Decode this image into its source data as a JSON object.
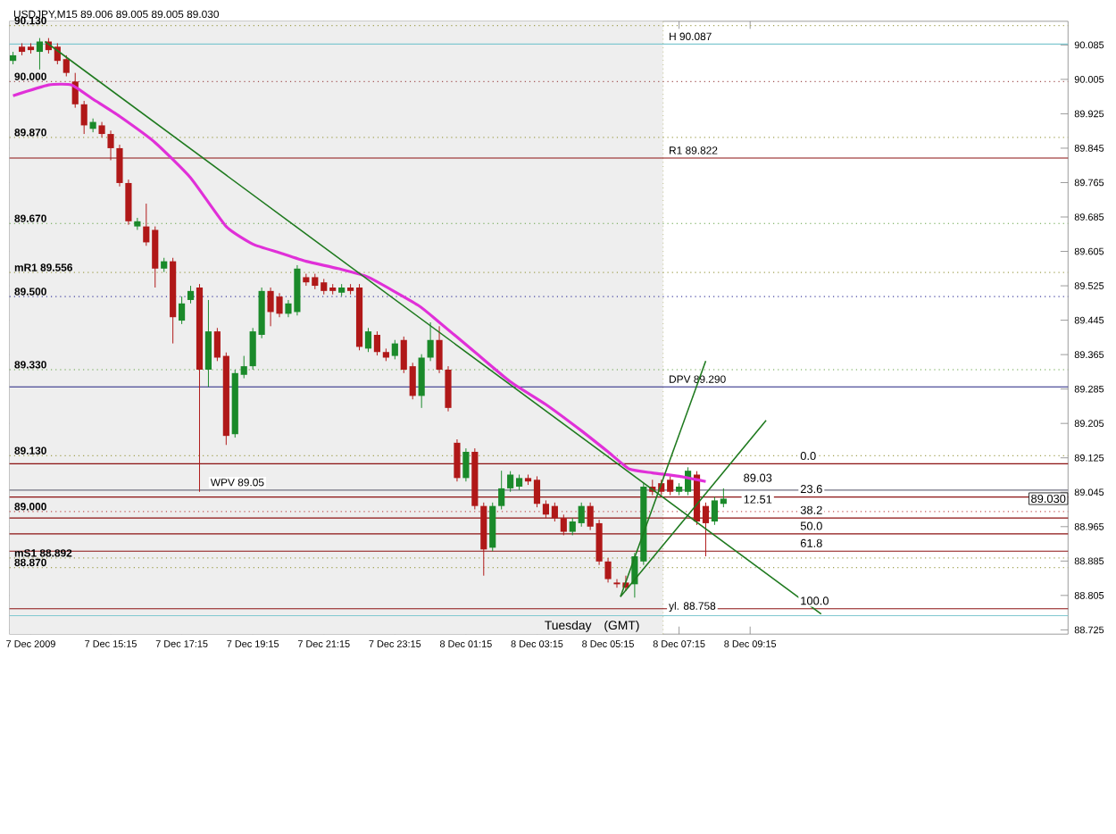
{
  "chart_data": {
    "type": "candlestick",
    "title": "USDJPY,M15 89.006 89.005 89.005 89.030",
    "xlim": [
      "2009-12-07T12:24",
      "2009-12-08T18:12"
    ],
    "ylim": [
      88.715,
      90.14
    ],
    "xticks": [
      {
        "value": "2009-12-07T13:00",
        "label": "7 Dec 2009"
      },
      {
        "value": "2009-12-07T15:15",
        "label": "7 Dec 15:15"
      },
      {
        "value": "2009-12-07T17:15",
        "label": "7 Dec 17:15"
      },
      {
        "value": "2009-12-07T19:15",
        "label": "7 Dec 19:15"
      },
      {
        "value": "2009-12-07T21:15",
        "label": "7 Dec 21:15"
      },
      {
        "value": "2009-12-07T23:15",
        "label": "7 Dec 23:15"
      },
      {
        "value": "2009-12-08T01:15",
        "label": "8 Dec 01:15"
      },
      {
        "value": "2009-12-08T03:15",
        "label": "8 Dec 03:15"
      },
      {
        "value": "2009-12-08T05:15",
        "label": "8 Dec 05:15"
      },
      {
        "value": "2009-12-08T07:15",
        "label": "8 Dec 07:15"
      },
      {
        "value": "2009-12-08T09:15",
        "label": "8 Dec 09:15"
      }
    ],
    "yticks": [
      {
        "value": 90.085,
        "label": "90.085"
      },
      {
        "value": 90.005,
        "label": "90.005"
      },
      {
        "value": 89.925,
        "label": "89.925"
      },
      {
        "value": 89.845,
        "label": "89.845"
      },
      {
        "value": 89.765,
        "label": "89.765"
      },
      {
        "value": 89.685,
        "label": "89.685"
      },
      {
        "value": 89.605,
        "label": "89.605"
      },
      {
        "value": 89.525,
        "label": "89.525"
      },
      {
        "value": 89.445,
        "label": "89.445"
      },
      {
        "value": 89.365,
        "label": "89.365"
      },
      {
        "value": 89.285,
        "label": "89.285"
      },
      {
        "value": 89.205,
        "label": "89.205"
      },
      {
        "value": 89.125,
        "label": "89.125"
      },
      {
        "value": 89.045,
        "label": "89.045"
      },
      {
        "value": 88.965,
        "label": "88.965"
      },
      {
        "value": 88.885,
        "label": "88.885"
      },
      {
        "value": 88.805,
        "label": "88.805"
      },
      {
        "value": 88.725,
        "label": "88.725"
      }
    ],
    "series": [
      {
        "x": [
          "2009-12-07T12:30",
          "2009-12-07T12:45",
          "2009-12-07T13:00",
          "2009-12-07T13:15",
          "2009-12-07T13:30",
          "2009-12-07T13:45",
          "2009-12-07T14:00",
          "2009-12-07T14:15",
          "2009-12-07T14:30",
          "2009-12-07T14:45",
          "2009-12-07T15:00",
          "2009-12-07T15:15",
          "2009-12-07T15:30",
          "2009-12-07T15:45",
          "2009-12-07T16:00",
          "2009-12-07T16:15",
          "2009-12-07T16:30",
          "2009-12-07T16:45",
          "2009-12-07T17:00",
          "2009-12-07T17:15",
          "2009-12-07T17:30",
          "2009-12-07T17:45",
          "2009-12-07T18:00",
          "2009-12-07T18:15",
          "2009-12-07T18:30",
          "2009-12-07T18:45",
          "2009-12-07T19:00",
          "2009-12-07T19:15",
          "2009-12-07T19:30",
          "2009-12-07T19:45",
          "2009-12-07T20:00",
          "2009-12-07T20:15",
          "2009-12-07T20:30",
          "2009-12-07T20:45",
          "2009-12-07T21:00",
          "2009-12-07T21:15",
          "2009-12-07T21:30",
          "2009-12-07T21:45",
          "2009-12-07T22:00",
          "2009-12-07T22:15",
          "2009-12-07T22:30",
          "2009-12-07T22:45",
          "2009-12-07T23:00",
          "2009-12-07T23:15",
          "2009-12-07T23:30",
          "2009-12-07T23:45",
          "2009-12-08T00:00",
          "2009-12-08T00:15",
          "2009-12-08T00:30",
          "2009-12-08T00:45",
          "2009-12-08T01:00",
          "2009-12-08T01:15",
          "2009-12-08T01:30",
          "2009-12-08T01:45",
          "2009-12-08T02:00",
          "2009-12-08T02:15",
          "2009-12-08T02:30",
          "2009-12-08T02:45",
          "2009-12-08T03:00",
          "2009-12-08T03:15",
          "2009-12-08T03:30",
          "2009-12-08T03:45",
          "2009-12-08T04:00",
          "2009-12-08T04:15",
          "2009-12-08T04:30",
          "2009-12-08T04:45",
          "2009-12-08T05:00",
          "2009-12-08T05:15",
          "2009-12-08T05:30",
          "2009-12-08T05:45",
          "2009-12-08T06:00",
          "2009-12-08T06:15",
          "2009-12-08T06:30",
          "2009-12-08T06:45",
          "2009-12-08T07:00",
          "2009-12-08T07:15",
          "2009-12-08T07:30",
          "2009-12-08T07:45",
          "2009-12-08T08:00",
          "2009-12-08T08:15",
          "2009-12-08T08:30"
        ],
        "ohlc": [
          [
            90.048,
            90.069,
            90.04,
            90.061
          ],
          [
            90.081,
            90.089,
            90.061,
            90.069
          ],
          [
            90.081,
            90.089,
            90.065,
            90.073
          ],
          [
            90.069,
            90.101,
            90.028,
            90.093
          ],
          [
            90.093,
            90.101,
            90.065,
            90.073
          ],
          [
            90.081,
            90.089,
            90.04,
            90.048
          ],
          [
            90.052,
            90.061,
            90.012,
            90.02
          ],
          [
            90.0,
            90.02,
            89.939,
            89.947
          ],
          [
            89.947,
            89.955,
            89.878,
            89.898
          ],
          [
            89.89,
            89.914,
            89.882,
            89.906
          ],
          [
            89.898,
            89.906,
            89.87,
            89.878
          ],
          [
            89.878,
            89.886,
            89.817,
            89.845
          ],
          [
            89.845,
            89.853,
            89.756,
            89.764
          ],
          [
            89.764,
            89.772,
            89.667,
            89.675
          ],
          [
            89.663,
            89.683,
            89.655,
            89.675
          ],
          [
            89.663,
            89.716,
            89.618,
            89.626
          ],
          [
            89.655,
            89.663,
            89.521,
            89.565
          ],
          [
            89.565,
            89.59,
            89.557,
            89.582
          ],
          [
            89.582,
            89.59,
            89.391,
            89.452
          ],
          [
            89.444,
            89.5,
            89.436,
            89.484
          ],
          [
            89.492,
            89.525,
            89.484,
            89.513
          ],
          [
            89.521,
            89.529,
            89.046,
            89.33
          ],
          [
            89.33,
            89.492,
            89.29,
            89.419
          ],
          [
            89.419,
            89.427,
            89.35,
            89.358
          ],
          [
            89.362,
            89.37,
            89.155,
            89.176
          ],
          [
            89.18,
            89.33,
            89.172,
            89.322
          ],
          [
            89.318,
            89.362,
            89.31,
            89.338
          ],
          [
            89.338,
            89.427,
            89.33,
            89.419
          ],
          [
            89.411,
            89.521,
            89.403,
            89.513
          ],
          [
            89.513,
            89.521,
            89.431,
            89.464
          ],
          [
            89.5,
            89.508,
            89.452,
            89.46
          ],
          [
            89.46,
            89.492,
            89.452,
            89.484
          ],
          [
            89.464,
            89.573,
            89.456,
            89.565
          ],
          [
            89.545,
            89.553,
            89.525,
            89.533
          ],
          [
            89.545,
            89.553,
            89.517,
            89.525
          ],
          [
            89.533,
            89.541,
            89.505,
            89.513
          ],
          [
            89.521,
            89.529,
            89.505,
            89.513
          ],
          [
            89.509,
            89.529,
            89.501,
            89.521
          ],
          [
            89.521,
            89.529,
            89.505,
            89.513
          ],
          [
            89.521,
            89.529,
            89.375,
            89.383
          ],
          [
            89.379,
            89.427,
            89.371,
            89.419
          ],
          [
            89.411,
            89.419,
            89.363,
            89.371
          ],
          [
            89.371,
            89.379,
            89.35,
            89.358
          ],
          [
            89.362,
            89.399,
            89.354,
            89.391
          ],
          [
            89.399,
            89.407,
            89.322,
            89.33
          ],
          [
            89.338,
            89.346,
            89.261,
            89.269
          ],
          [
            89.269,
            89.366,
            89.241,
            89.358
          ],
          [
            89.358,
            89.44,
            89.35,
            89.399
          ],
          [
            89.399,
            89.431,
            89.322,
            89.33
          ],
          [
            89.33,
            89.338,
            89.233,
            89.241
          ],
          [
            89.16,
            89.168,
            89.07,
            89.078
          ],
          [
            89.078,
            89.147,
            89.07,
            89.139
          ],
          [
            89.139,
            89.147,
            89.005,
            89.013
          ],
          [
            89.013,
            89.021,
            88.851,
            88.912
          ],
          [
            88.916,
            89.021,
            88.908,
            89.013
          ],
          [
            89.013,
            89.095,
            89.005,
            89.054
          ],
          [
            89.054,
            89.094,
            89.046,
            89.086
          ],
          [
            89.058,
            89.086,
            89.05,
            89.078
          ],
          [
            89.078,
            89.086,
            89.062,
            89.07
          ],
          [
            89.074,
            89.082,
            89.01,
            89.018
          ],
          [
            89.018,
            89.026,
            88.985,
            88.993
          ],
          [
            89.013,
            89.021,
            88.977,
            88.985
          ],
          [
            88.985,
            88.993,
            88.945,
            88.953
          ],
          [
            88.953,
            88.985,
            88.945,
            88.977
          ],
          [
            88.973,
            89.021,
            88.965,
            89.013
          ],
          [
            89.013,
            89.021,
            88.957,
            88.965
          ],
          [
            88.973,
            88.981,
            88.876,
            88.884
          ],
          [
            88.884,
            88.892,
            88.835,
            88.843
          ],
          [
            88.835,
            88.843,
            88.823,
            88.831
          ],
          [
            88.835,
            88.851,
            88.815,
            88.823
          ],
          [
            88.831,
            88.904,
            88.8,
            88.896
          ],
          [
            88.884,
            89.066,
            88.876,
            89.058
          ],
          [
            89.058,
            89.074,
            89.038,
            89.046
          ],
          [
            89.066,
            89.074,
            89.038,
            89.046
          ],
          [
            89.074,
            89.082,
            89.038,
            89.046
          ],
          [
            89.046,
            89.066,
            89.038,
            89.058
          ],
          [
            89.046,
            89.103,
            89.038,
            89.095
          ],
          [
            89.086,
            89.094,
            88.969,
            88.977
          ],
          [
            89.013,
            89.021,
            88.896,
            88.973
          ],
          [
            88.977,
            89.034,
            88.969,
            89.026
          ],
          [
            89.018,
            89.054,
            89.01,
            89.03
          ]
        ],
        "colors": [
          "#1a8a2a",
          "#b01818",
          "#b01818",
          "#1a8a2a",
          "#b01818",
          "#b01818",
          "#b01818",
          "#b01818",
          "#b01818",
          "#1a8a2a",
          "#b01818",
          "#b01818",
          "#b01818",
          "#b01818",
          "#1a8a2a",
          "#b01818",
          "#b01818",
          "#1a8a2a",
          "#b01818",
          "#1a8a2a",
          "#1a8a2a",
          "#b01818",
          "#1a8a2a",
          "#b01818",
          "#b01818",
          "#1a8a2a",
          "#1a8a2a",
          "#1a8a2a",
          "#1a8a2a",
          "#b01818",
          "#b01818",
          "#1a8a2a",
          "#1a8a2a",
          "#b01818",
          "#b01818",
          "#b01818",
          "#b01818",
          "#1a8a2a",
          "#b01818",
          "#b01818",
          "#1a8a2a",
          "#b01818",
          "#b01818",
          "#1a8a2a",
          "#b01818",
          "#b01818",
          "#1a8a2a",
          "#1a8a2a",
          "#b01818",
          "#b01818",
          "#b01818",
          "#1a8a2a",
          "#b01818",
          "#b01818",
          "#1a8a2a",
          "#1a8a2a",
          "#1a8a2a",
          "#1a8a2a",
          "#b01818",
          "#b01818",
          "#b01818",
          "#b01818",
          "#b01818",
          "#1a8a2a",
          "#1a8a2a",
          "#b01818",
          "#b01818",
          "#b01818",
          "#b01818",
          "#b01818",
          "#1a8a2a",
          "#1a8a2a",
          "#b01818",
          "#b01818",
          "#b01818",
          "#1a8a2a",
          "#1a8a2a",
          "#b01818",
          "#b01818",
          "#1a8a2a",
          "#1a8a2a"
        ]
      },
      {
        "type": "line",
        "color": "#e030d8",
        "x": [
          "2009-12-07T12:30",
          "2009-12-07T13:30",
          "2009-12-07T14:09",
          "2009-12-07T14:45",
          "2009-12-07T15:30",
          "2009-12-07T16:30",
          "2009-12-07T17:30",
          "2009-12-07T18:30",
          "2009-12-07T19:15",
          "2009-12-07T20:00",
          "2009-12-07T20:45",
          "2009-12-07T21:39",
          "2009-12-07T22:30",
          "2009-12-07T23:54",
          "2009-12-08T00:30",
          "2009-12-08T01:30",
          "2009-12-08T02:30",
          "2009-12-08T03:30",
          "2009-12-08T04:30",
          "2009-12-08T05:15",
          "2009-12-08T05:51",
          "2009-12-08T06:30",
          "2009-12-08T07:15",
          "2009-12-08T08:00"
        ],
        "values": [
          89.967,
          89.992,
          89.992,
          89.959,
          89.919,
          89.858,
          89.776,
          89.663,
          89.622,
          89.602,
          89.582,
          89.565,
          89.545,
          89.48,
          89.44,
          89.371,
          89.302,
          89.249,
          89.188,
          89.139,
          89.099,
          89.09,
          89.082,
          89.07
        ]
      },
      {
        "type": "line",
        "color": "#1f7a1f",
        "x": [
          "2009-12-07T13:24",
          "2009-12-08T11:15"
        ],
        "values": [
          90.093,
          88.762
        ]
      },
      {
        "type": "line",
        "color": "#1f7a1f",
        "x": [
          "2009-12-08T05:36",
          "2009-12-08T08:00"
        ],
        "values": [
          88.802,
          89.35
        ]
      },
      {
        "type": "line",
        "color": "#1f7a1f",
        "x": [
          "2009-12-08T05:36",
          "2009-12-08T09:42"
        ],
        "values": [
          88.802,
          89.212
        ]
      }
    ],
    "bands": [
      {
        "axis": "x",
        "from": "2009-12-07T12:24",
        "to": "2009-12-08T06:48",
        "color": "#eeeeee"
      }
    ],
    "ref_lines": [
      {
        "axis": "x",
        "value": "2009-12-08T06:48",
        "color": "#a0a050",
        "line_style": "dotted"
      },
      {
        "axis": "y",
        "value": 90.13,
        "label": "90.130",
        "color": "#a0a050",
        "line_style": "dotted"
      },
      {
        "axis": "y",
        "value": 90.087,
        "label": "H 90.087",
        "color": "#80c8d0",
        "line_style": "solid"
      },
      {
        "axis": "y",
        "value": 90.0,
        "label": "90.000",
        "color": "#a05050",
        "line_style": "dotted"
      },
      {
        "axis": "y",
        "value": 89.87,
        "label": "89.870",
        "color": "#a0a050",
        "line_style": "dotted"
      },
      {
        "axis": "y",
        "value": 89.822,
        "label": "R1  89.822",
        "color": "#8b1010",
        "line_style": "solid"
      },
      {
        "axis": "y",
        "value": 89.67,
        "label": "89.670",
        "color": "#60a040",
        "line_style": "dotted"
      },
      {
        "axis": "y",
        "value": 89.556,
        "label": "mR1  89.556",
        "color": "#a0a050",
        "line_style": "dotted"
      },
      {
        "axis": "y",
        "value": 89.5,
        "label": "89.500",
        "color": "#4040a0",
        "line_style": "dotted"
      },
      {
        "axis": "y",
        "value": 89.33,
        "label": "89.330",
        "color": "#60a040",
        "line_style": "dotted"
      },
      {
        "axis": "y",
        "value": 89.29,
        "label": "DPV  89.290",
        "color": "#202080",
        "line_style": "solid"
      },
      {
        "axis": "y",
        "value": 89.13,
        "label": "89.130",
        "color": "#a0a050",
        "line_style": "dotted"
      },
      {
        "axis": "y",
        "value": 89.111,
        "color": "#8b1010",
        "line_style": "solid"
      },
      {
        "axis": "y",
        "value": 89.05,
        "label": "WPV  89.05",
        "color": "#707080",
        "line_style": "solid"
      },
      {
        "axis": "y",
        "value": 89.034,
        "color": "#8b1010",
        "line_style": "solid"
      },
      {
        "axis": "y",
        "value": 89.0,
        "label": "89.000",
        "color": "#c05050",
        "line_style": "dotted"
      },
      {
        "axis": "y",
        "value": 88.985,
        "color": "#8b1010",
        "line_style": "solid"
      },
      {
        "axis": "y",
        "value": 88.948,
        "color": "#8b1010",
        "line_style": "solid"
      },
      {
        "axis": "y",
        "value": 88.908,
        "color": "#8b1010",
        "line_style": "solid"
      },
      {
        "axis": "y",
        "value": 88.892,
        "label": "mS1  88.892",
        "color": "#a0a050",
        "line_style": "dotted"
      },
      {
        "axis": "y",
        "value": 88.87,
        "label": "88.870",
        "color": "#a0a050",
        "line_style": "dotted"
      },
      {
        "axis": "y",
        "value": 88.774,
        "color": "#8b1010",
        "line_style": "solid"
      },
      {
        "axis": "y",
        "value": 88.758,
        "label": "yl.  88.758",
        "color": "#80c8d0",
        "line_style": "solid"
      }
    ],
    "annotations": [
      {
        "text": "89.03",
        "x": "2009-12-08T09:00",
        "y": 89.06
      },
      {
        "text": "12.51",
        "x": "2009-12-08T09:00",
        "y": 89.01
      },
      {
        "text": "89.030",
        "x": "2009-12-08T18:12",
        "y": 89.03
      },
      {
        "text": "0.0",
        "x": "2009-12-08T10:36",
        "y": 89.111
      },
      {
        "text": "23.6",
        "x": "2009-12-08T10:36",
        "y": 89.034
      },
      {
        "text": "38.2",
        "x": "2009-12-08T10:36",
        "y": 88.985
      },
      {
        "text": "50.0",
        "x": "2009-12-08T10:36",
        "y": 88.948
      },
      {
        "text": "61.8",
        "x": "2009-12-08T10:36",
        "y": 88.908
      },
      {
        "text": "100.0",
        "x": "2009-12-08T10:36",
        "y": 88.774
      },
      "Tuesday",
      "(GMT)"
    ]
  }
}
